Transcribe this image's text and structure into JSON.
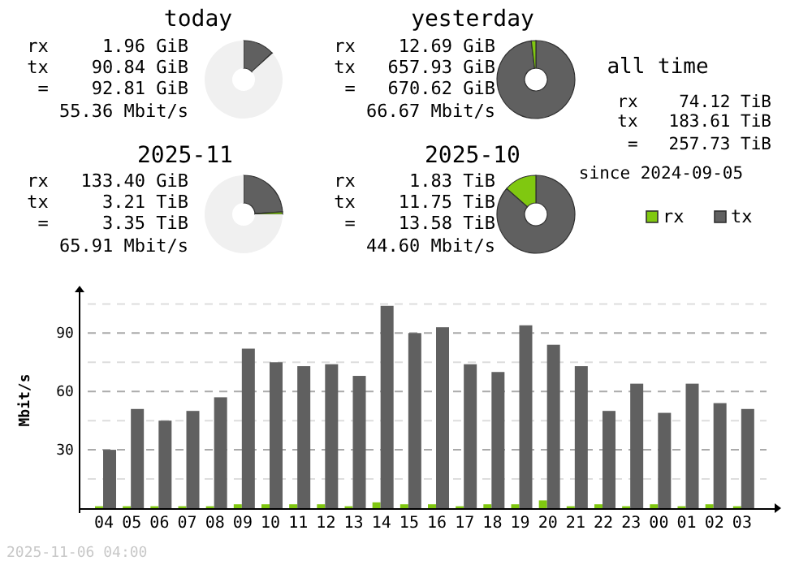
{
  "chart_data": [
    {
      "type": "donut",
      "title": "today",
      "categories": [
        null,
        null,
        null
      ],
      "values": [
        13.0,
        0.3,
        86.7
      ],
      "colors": [
        "#606060",
        "#80c810",
        "#f0f0f0"
      ],
      "annotations": [
        "rx     1.96 GiB",
        "tx    90.84 GiB",
        " =    92.81 GiB",
        "   55.36 Mbit/s"
      ]
    },
    {
      "type": "donut",
      "title": "yesterday",
      "categories": [
        null,
        null,
        null
      ],
      "values": [
        98.1,
        1.9,
        0
      ],
      "colors": [
        "#606060",
        "#80c810",
        "#f0f0f0"
      ],
      "annotations": [
        "rx    12.69 GiB",
        "tx   657.93 GiB",
        " =   670.62 GiB",
        "   66.67 Mbit/s"
      ]
    },
    {
      "type": "donut",
      "title": "2025-11",
      "categories": [
        null,
        null,
        null
      ],
      "values": [
        24.0,
        1.0,
        75.0
      ],
      "colors": [
        "#606060",
        "#80c810",
        "#f0f0f0"
      ],
      "annotations": [
        "rx   133.40 GiB",
        "tx     3.21 TiB",
        " =     3.35 TiB",
        "   65.91 Mbit/s"
      ]
    },
    {
      "type": "donut",
      "title": "2025-10",
      "categories": [
        null,
        null,
        null
      ],
      "values": [
        86.5,
        13.5,
        0
      ],
      "colors": [
        "#606060",
        "#80c810",
        "#f0f0f0"
      ],
      "annotations": [
        "rx     1.83 TiB",
        "tx    11.75 TiB",
        " =    13.58 TiB",
        "   44.60 Mbit/s"
      ]
    },
    {
      "type": "other",
      "title": "all time",
      "annotations": [
        "rx    74.12 TiB",
        "tx   183.61 TiB",
        " =   257.73 TiB",
        "since 2024-09-05"
      ]
    },
    {
      "type": "bar",
      "ylabel": "Mbit/s",
      "categories": [
        "04",
        "05",
        "06",
        "07",
        "08",
        "09",
        "10",
        "11",
        "12",
        "13",
        "14",
        "15",
        "16",
        "17",
        "18",
        "19",
        "20",
        "21",
        "22",
        "23",
        "00",
        "01",
        "02",
        "03"
      ],
      "series": [
        {
          "name": "rx",
          "color": "#80c810",
          "values": [
            1,
            1,
            1,
            1,
            1,
            2,
            2,
            2,
            2,
            1,
            3,
            2,
            2,
            1,
            2,
            2,
            4,
            1,
            2,
            1,
            2,
            1,
            2,
            1
          ]
        },
        {
          "name": "tx",
          "color": "#606060",
          "values": [
            30,
            51,
            45,
            50,
            57,
            82,
            75,
            73,
            74,
            68,
            104,
            90,
            93,
            74,
            70,
            94,
            84,
            73,
            50,
            64,
            49,
            64,
            54,
            51
          ]
        }
      ],
      "ylim": [
        0,
        111
      ],
      "yticks": [
        {
          "value": 15,
          "label": null
        },
        30,
        {
          "value": 45,
          "label": null
        },
        60,
        {
          "value": 75,
          "label": null
        },
        90,
        {
          "value": 105,
          "label": null
        }
      ],
      "grid": "y",
      "legend": "top right",
      "annotations": [
        "2025-11-06 04:00"
      ]
    }
  ]
}
